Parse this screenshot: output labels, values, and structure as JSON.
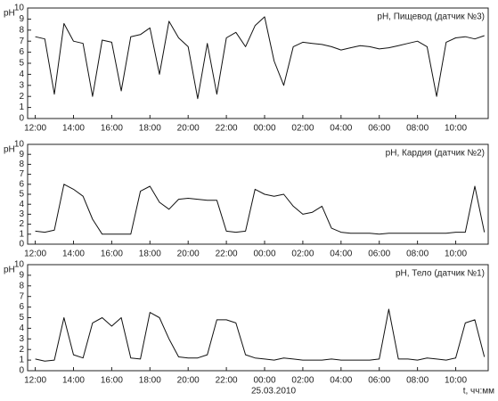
{
  "chart_data": [
    {
      "type": "line",
      "title": "pH, Пищевод (датчик №3)",
      "y_label": "pH",
      "color": "#111",
      "x": [
        12,
        12.5,
        13,
        13.5,
        14,
        14.5,
        15,
        15.5,
        16,
        16.5,
        17,
        17.5,
        18,
        18.5,
        19,
        19.5,
        20,
        20.5,
        21,
        21.5,
        22,
        22.5,
        23,
        23.5,
        24,
        24.5,
        25,
        25.5,
        26,
        26.5,
        27,
        27.5,
        28,
        28.5,
        29,
        29.5,
        30,
        30.5,
        31,
        31.5,
        32,
        32.5,
        33,
        33.5,
        34,
        34.5,
        35,
        35.5
      ],
      "values": [
        7.4,
        7.2,
        2.2,
        8.6,
        7.0,
        6.8,
        2.0,
        7.1,
        6.9,
        2.5,
        7.4,
        7.6,
        8.2,
        4.0,
        8.8,
        7.3,
        6.5,
        1.8,
        6.8,
        2.2,
        7.3,
        7.8,
        6.5,
        8.4,
        9.2,
        5.2,
        3.0,
        6.5,
        6.9,
        6.8,
        6.7,
        6.5,
        6.2,
        6.4,
        6.6,
        6.5,
        6.3,
        6.4,
        6.6,
        6.8,
        7.0,
        6.5,
        2.0,
        6.9,
        7.3,
        7.4,
        7.2,
        7.5
      ],
      "xlim": [
        11.6,
        35.7
      ],
      "xticks": [
        {
          "value": 12,
          "label": "12:00"
        },
        {
          "value": 14,
          "label": "14:00"
        },
        {
          "value": 16,
          "label": "16:00"
        },
        {
          "value": 18,
          "label": "18:00"
        },
        {
          "value": 20,
          "label": "20:00"
        },
        {
          "value": 22,
          "label": "22:00"
        },
        {
          "value": 24,
          "label": "00:00"
        },
        {
          "value": 26,
          "label": "02:00"
        },
        {
          "value": 28,
          "label": "04:00"
        },
        {
          "value": 30,
          "label": "06:00"
        },
        {
          "value": 32,
          "label": "08:00"
        },
        {
          "value": 34,
          "label": "10:00"
        }
      ],
      "ylim": [
        0,
        10
      ],
      "yticks": [
        0,
        1,
        2,
        3,
        4,
        5,
        6,
        7,
        8,
        9,
        10
      ]
    },
    {
      "type": "line",
      "title": "pH, Кардия (датчик №2)",
      "y_label": "pH",
      "color": "#111",
      "x": [
        12,
        12.5,
        13,
        13.5,
        14,
        14.5,
        15,
        15.5,
        16,
        16.5,
        17,
        17.5,
        18,
        18.5,
        19,
        19.5,
        20,
        20.5,
        21,
        21.5,
        22,
        22.5,
        23,
        23.5,
        24,
        24.5,
        25,
        25.5,
        26,
        26.5,
        27,
        27.5,
        28,
        28.5,
        29,
        29.5,
        30,
        30.5,
        31,
        31.5,
        32,
        32.5,
        33,
        33.5,
        34,
        34.5,
        35,
        35.5
      ],
      "values": [
        1.3,
        1.2,
        1.4,
        6.0,
        5.5,
        4.8,
        2.5,
        1.0,
        1.0,
        1.0,
        1.0,
        5.3,
        5.8,
        4.2,
        3.5,
        4.5,
        4.6,
        4.5,
        4.4,
        4.4,
        1.3,
        1.2,
        1.3,
        5.5,
        5.0,
        4.8,
        5.0,
        3.8,
        3.0,
        3.2,
        3.8,
        1.6,
        1.2,
        1.1,
        1.1,
        1.1,
        1.0,
        1.1,
        1.1,
        1.1,
        1.1,
        1.1,
        1.1,
        1.1,
        1.2,
        1.2,
        5.8,
        1.2
      ],
      "xlim": [
        11.6,
        35.7
      ],
      "xticks": [
        {
          "value": 12,
          "label": "12:00"
        },
        {
          "value": 14,
          "label": "14:00"
        },
        {
          "value": 16,
          "label": "16:00"
        },
        {
          "value": 18,
          "label": "18:00"
        },
        {
          "value": 20,
          "label": "20:00"
        },
        {
          "value": 22,
          "label": "22:00"
        },
        {
          "value": 24,
          "label": "00:00"
        },
        {
          "value": 26,
          "label": "02:00"
        },
        {
          "value": 28,
          "label": "04:00"
        },
        {
          "value": 30,
          "label": "06:00"
        },
        {
          "value": 32,
          "label": "08:00"
        },
        {
          "value": 34,
          "label": "10:00"
        }
      ],
      "ylim": [
        0,
        10
      ],
      "yticks": [
        0,
        1,
        2,
        3,
        4,
        5,
        6,
        7,
        8,
        9,
        10
      ]
    },
    {
      "type": "line",
      "title": "pH, Тело (датчик №1)",
      "y_label": "pH",
      "color": "#111",
      "x_label": "t, чч:мм",
      "date_label": "25.03.2010",
      "x": [
        12,
        12.5,
        13,
        13.5,
        14,
        14.5,
        15,
        15.5,
        16,
        16.5,
        17,
        17.5,
        18,
        18.5,
        19,
        19.5,
        20,
        20.5,
        21,
        21.5,
        22,
        22.5,
        23,
        23.5,
        24,
        24.5,
        25,
        25.5,
        26,
        26.5,
        27,
        27.5,
        28,
        28.5,
        29,
        29.5,
        30,
        30.5,
        31,
        31.5,
        32,
        32.5,
        33,
        33.5,
        34,
        34.5,
        35,
        35.5
      ],
      "values": [
        1.1,
        0.9,
        1.0,
        5.0,
        1.5,
        1.2,
        4.5,
        5.0,
        4.2,
        5.0,
        1.2,
        1.1,
        5.5,
        5.0,
        3.0,
        1.3,
        1.2,
        1.2,
        1.5,
        4.8,
        4.8,
        4.5,
        1.5,
        1.2,
        1.1,
        1.0,
        1.2,
        1.1,
        1.0,
        1.0,
        1.0,
        1.1,
        1.0,
        1.0,
        1.0,
        1.0,
        1.1,
        5.8,
        1.1,
        1.1,
        1.0,
        1.2,
        1.1,
        1.0,
        1.2,
        4.5,
        4.8,
        1.3
      ],
      "xlim": [
        11.6,
        35.7
      ],
      "xticks": [
        {
          "value": 12,
          "label": "12:00"
        },
        {
          "value": 14,
          "label": "14:00"
        },
        {
          "value": 16,
          "label": "16:00"
        },
        {
          "value": 18,
          "label": "18:00"
        },
        {
          "value": 20,
          "label": "20:00"
        },
        {
          "value": 22,
          "label": "22:00"
        },
        {
          "value": 24,
          "label": "00:00"
        },
        {
          "value": 26,
          "label": "02:00"
        },
        {
          "value": 28,
          "label": "04:00"
        },
        {
          "value": 30,
          "label": "06:00"
        },
        {
          "value": 32,
          "label": "08:00"
        },
        {
          "value": 34,
          "label": "10:00"
        }
      ],
      "ylim": [
        0,
        10
      ],
      "yticks": [
        0,
        1,
        2,
        3,
        4,
        5,
        6,
        7,
        8,
        9,
        10
      ]
    }
  ]
}
